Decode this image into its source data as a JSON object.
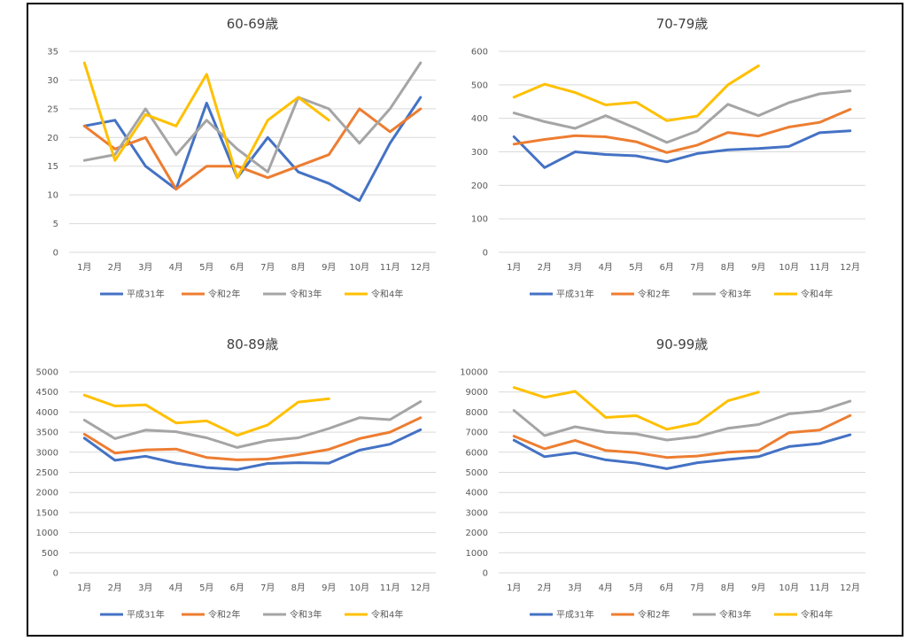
{
  "colors": {
    "平成31年": "#4472C4",
    "令和2年": "#ED7D31",
    "令和3年": "#A5A5A5",
    "令和4年": "#FFC000"
  },
  "chart_data": [
    {
      "type": "line",
      "title": "60-69歳",
      "categories": [
        "1月",
        "2月",
        "3月",
        "4月",
        "5月",
        "6月",
        "7月",
        "8月",
        "9月",
        "10月",
        "11月",
        "12月"
      ],
      "ylim": [
        0,
        35
      ],
      "ystep": 5,
      "yticks": [
        "0",
        "5",
        "10",
        "15",
        "20",
        "25",
        "30",
        "35"
      ],
      "grid": true,
      "legend": "bottom",
      "series": [
        {
          "name": "平成31年",
          "values": [
            22,
            23,
            15,
            11,
            26,
            13,
            20,
            14,
            12,
            9,
            19,
            27
          ]
        },
        {
          "name": "令和2年",
          "values": [
            22,
            18,
            20,
            11,
            15,
            15,
            13,
            15,
            17,
            25,
            21,
            25
          ]
        },
        {
          "name": "令和3年",
          "values": [
            16,
            17,
            25,
            17,
            23,
            18,
            14,
            27,
            25,
            19,
            25,
            33
          ]
        },
        {
          "name": "令和4年",
          "values": [
            33,
            16,
            24,
            22,
            31,
            13,
            23,
            27,
            23,
            null,
            null,
            null
          ]
        }
      ]
    },
    {
      "type": "line",
      "title": "70-79歳",
      "categories": [
        "1月",
        "2月",
        "3月",
        "4月",
        "5月",
        "6月",
        "7月",
        "8月",
        "9月",
        "10月",
        "11月",
        "12月"
      ],
      "ylim": [
        0,
        600
      ],
      "ystep": 100,
      "yticks": [
        "0",
        "100",
        "200",
        "300",
        "400",
        "500",
        "600"
      ],
      "grid": true,
      "legend": "bottom",
      "series": [
        {
          "name": "平成31年",
          "values": [
            345,
            253,
            300,
            292,
            288,
            270,
            295,
            306,
            310,
            316,
            357,
            363
          ]
        },
        {
          "name": "令和2年",
          "values": [
            323,
            337,
            348,
            345,
            330,
            298,
            320,
            358,
            347,
            374,
            388,
            427
          ]
        },
        {
          "name": "令和3年",
          "values": [
            416,
            390,
            370,
            408,
            370,
            328,
            362,
            442,
            408,
            447,
            473,
            482
          ]
        },
        {
          "name": "令和4年",
          "values": [
            463,
            502,
            477,
            440,
            448,
            393,
            407,
            500,
            557,
            null,
            null,
            null
          ]
        }
      ]
    },
    {
      "type": "line",
      "title": "80-89歳",
      "categories": [
        "1月",
        "2月",
        "3月",
        "4月",
        "5月",
        "6月",
        "7月",
        "8月",
        "9月",
        "10月",
        "11月",
        "12月"
      ],
      "ylim": [
        0,
        5000
      ],
      "ystep": 500,
      "yticks": [
        "0",
        "500",
        "1000",
        "1500",
        "2000",
        "2500",
        "3000",
        "3500",
        "4000",
        "4500",
        "5000"
      ],
      "grid": true,
      "legend": "bottom",
      "series": [
        {
          "name": "平成31年",
          "values": [
            3350,
            2800,
            2900,
            2730,
            2620,
            2570,
            2720,
            2740,
            2730,
            3050,
            3200,
            3560
          ]
        },
        {
          "name": "令和2年",
          "values": [
            3450,
            2980,
            3060,
            3080,
            2870,
            2810,
            2830,
            2940,
            3070,
            3340,
            3500,
            3860
          ]
        },
        {
          "name": "令和3年",
          "values": [
            3800,
            3340,
            3550,
            3510,
            3360,
            3120,
            3290,
            3360,
            3590,
            3860,
            3810,
            4260
          ]
        },
        {
          "name": "令和4年",
          "values": [
            4420,
            4150,
            4180,
            3730,
            3780,
            3420,
            3680,
            4250,
            4330,
            null,
            null,
            null
          ]
        }
      ]
    },
    {
      "type": "line",
      "title": "90-99歳",
      "categories": [
        "1月",
        "2月",
        "3月",
        "4月",
        "5月",
        "6月",
        "7月",
        "8月",
        "9月",
        "10月",
        "11月",
        "12月"
      ],
      "ylim": [
        0,
        10000
      ],
      "ystep": 1000,
      "yticks": [
        "0",
        "1000",
        "2000",
        "3000",
        "4000",
        "5000",
        "6000",
        "7000",
        "8000",
        "9000",
        "10000"
      ],
      "grid": true,
      "legend": "bottom",
      "series": [
        {
          "name": "平成31年",
          "values": [
            6600,
            5780,
            5980,
            5620,
            5460,
            5180,
            5480,
            5640,
            5780,
            6280,
            6430,
            6870
          ]
        },
        {
          "name": "令和2年",
          "values": [
            6800,
            6170,
            6590,
            6090,
            5980,
            5740,
            5810,
            6000,
            6080,
            6980,
            7100,
            7830
          ]
        },
        {
          "name": "令和3年",
          "values": [
            8080,
            6830,
            7270,
            7000,
            6910,
            6610,
            6780,
            7190,
            7380,
            7910,
            8050,
            8540
          ]
        },
        {
          "name": "令和4年",
          "values": [
            9220,
            8730,
            9030,
            7730,
            7820,
            7140,
            7450,
            8560,
            8990,
            null,
            null,
            null
          ]
        }
      ]
    }
  ]
}
